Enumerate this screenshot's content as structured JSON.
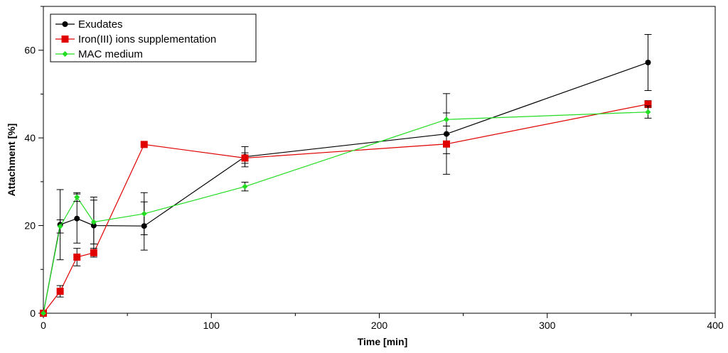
{
  "chart_data": {
    "type": "line",
    "title": "",
    "xlabel": "Time [min]",
    "ylabel": "Attachment [%]",
    "xlim": [
      0,
      400
    ],
    "ylim": [
      0,
      70
    ],
    "xticks": [
      0,
      100,
      200,
      300,
      400
    ],
    "yticks": [
      0,
      20,
      40,
      60
    ],
    "xtick_labels": [
      "0",
      "100",
      "200",
      "300",
      "400"
    ],
    "ytick_labels": [
      "0",
      "20",
      "40",
      "60"
    ],
    "grid": false,
    "legend_position": "top-left",
    "series": [
      {
        "name": "Exudates",
        "color": "#000000",
        "marker": "circle",
        "x": [
          0,
          10,
          20,
          30,
          60,
          120,
          240,
          360
        ],
        "y": [
          0,
          20.2,
          21.6,
          20.0,
          19.9,
          35.7,
          40.9,
          57.2
        ],
        "err": [
          0,
          8.0,
          5.6,
          6.5,
          5.5,
          2.3,
          9.2,
          6.4
        ]
      },
      {
        "name": "Iron(III) ions supplementation",
        "color": "#e00000",
        "marker": "square",
        "x": [
          0,
          10,
          20,
          30,
          60,
          120,
          240,
          360
        ],
        "y": [
          0,
          5.0,
          12.8,
          13.8,
          38.5,
          35.4,
          38.6,
          47.7
        ],
        "err": [
          0,
          1.3,
          2.0,
          1.0,
          0,
          1.2,
          2.2,
          0.8
        ]
      },
      {
        "name": "MAC medium",
        "color": "#22dd22",
        "marker": "diamond",
        "x": [
          0,
          10,
          20,
          30,
          60,
          120,
          240,
          360
        ],
        "y": [
          0,
          19.8,
          26.5,
          20.8,
          22.7,
          28.9,
          44.2,
          45.9
        ],
        "err": [
          0,
          1.5,
          1.0,
          5.0,
          4.8,
          1.0,
          1.5,
          1.4
        ]
      }
    ]
  }
}
